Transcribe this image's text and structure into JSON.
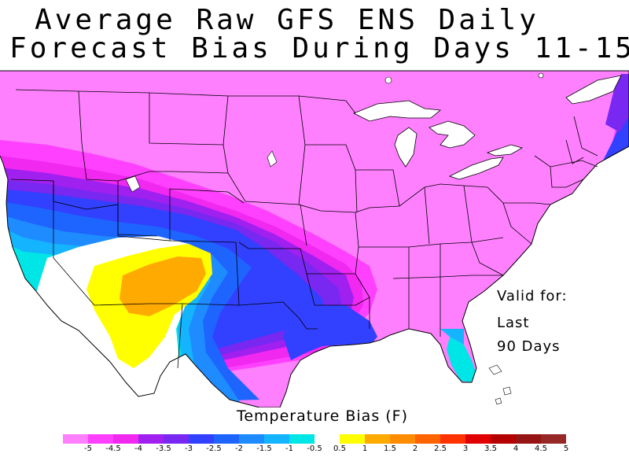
{
  "title": {
    "line1": "Average Raw GFS ENS Daily",
    "line2": "Forecast Bias During Days 11-15"
  },
  "annotation": {
    "valid_for": "Valid for:",
    "last": "Last",
    "days": "90 Days"
  },
  "legend": {
    "title": "Temperature Bias (F)",
    "ticks": [
      "-5",
      "-4.5",
      "-4",
      "-3.5",
      "-3",
      "-2.5",
      "-2",
      "-1.5",
      "-1",
      "-0.5",
      "0.5",
      "1",
      "1.5",
      "2",
      "2.5",
      "3",
      "3.5",
      "4",
      "4.5",
      "5"
    ],
    "colors": [
      "#ff80ff",
      "#ff40ff",
      "#f028f0",
      "#a020f0",
      "#7828f0",
      "#3240ff",
      "#1e64ff",
      "#1e8cff",
      "#14b4ff",
      "#00e6e6",
      "#ffffff",
      "#ffff00",
      "#ffaa00",
      "#ff8c00",
      "#ff6400",
      "#ff3200",
      "#e10000",
      "#b40000",
      "#961414",
      "#962828"
    ]
  },
  "map": {
    "region": "Contiguous United States",
    "colors": {
      "very_neg": "#ff80ff",
      "neg_mag": "#ff40ff",
      "magenta": "#f028f0",
      "purple": "#a020f0",
      "violet": "#7828f0",
      "blue": "#3240ff",
      "mid_blue": "#1e64ff",
      "light_blue": "#1e8cff",
      "sky": "#14b4ff",
      "cyan": "#00e6e6",
      "neutral": "#ffffff",
      "yellow": "#ffff00",
      "orange": "#ffaa00",
      "lakes": "#ffffff",
      "border": "#000000"
    }
  }
}
